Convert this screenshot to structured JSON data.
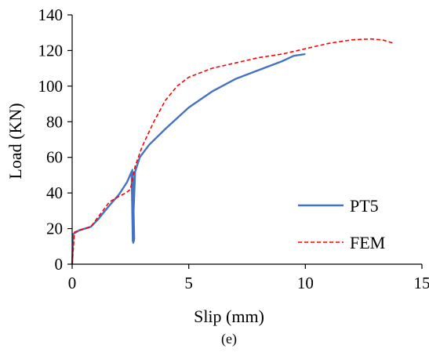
{
  "chart_data": {
    "type": "line",
    "title": "",
    "caption": "(e)",
    "xlabel": "Slip (mm)",
    "ylabel": "Load (KN)",
    "xlim": [
      0,
      15
    ],
    "ylim": [
      0,
      140
    ],
    "xticks": [
      0,
      5,
      10,
      15
    ],
    "xtick_labels": [
      "0",
      "5",
      "10",
      "15"
    ],
    "yticks": [
      0,
      20,
      40,
      60,
      80,
      100,
      120,
      140
    ],
    "ytick_labels": [
      "0",
      "20",
      "40",
      "60",
      "80",
      "100",
      "120",
      "140"
    ],
    "grid": false,
    "legend_position": "bottom-right",
    "series": [
      {
        "name": "PT5",
        "color": "#4472C4",
        "style": "solid",
        "x": [
          0,
          0.05,
          0.3,
          0.8,
          1.1,
          1.6,
          2.0,
          2.35,
          2.55,
          2.6,
          2.58,
          2.62,
          2.56,
          2.64,
          2.58,
          2.62,
          2.58,
          2.65,
          2.6,
          2.62,
          2.57,
          2.66,
          2.6,
          2.62,
          2.7,
          2.9,
          3.3,
          4.0,
          5.0,
          6.0,
          7.0,
          8.0,
          9.0,
          9.5,
          10.0
        ],
        "y": [
          0,
          17,
          19,
          21,
          25,
          33,
          39,
          46,
          52,
          13,
          50,
          12,
          48,
          14,
          53,
          12,
          46,
          13,
          50,
          12,
          47,
          14,
          51,
          25,
          52,
          60,
          67,
          76,
          88,
          97,
          104,
          109,
          114,
          117,
          118
        ]
      },
      {
        "name": "FEM",
        "color": "#FF0000",
        "style": "dashed",
        "x": [
          0,
          0.1,
          0.3,
          0.8,
          1.2,
          1.6,
          2.0,
          2.3,
          2.5,
          2.7,
          3.0,
          3.5,
          4.0,
          4.5,
          5.0,
          6.0,
          7.0,
          8.0,
          9.0,
          10.0,
          11.0,
          12.0,
          12.8,
          13.3,
          13.8
        ],
        "y": [
          0,
          18,
          19,
          21,
          28,
          35,
          38,
          40,
          42,
          55,
          66,
          80,
          92,
          100,
          105,
          110,
          113,
          116,
          118,
          121,
          124,
          126,
          126.5,
          126,
          124
        ]
      }
    ]
  }
}
